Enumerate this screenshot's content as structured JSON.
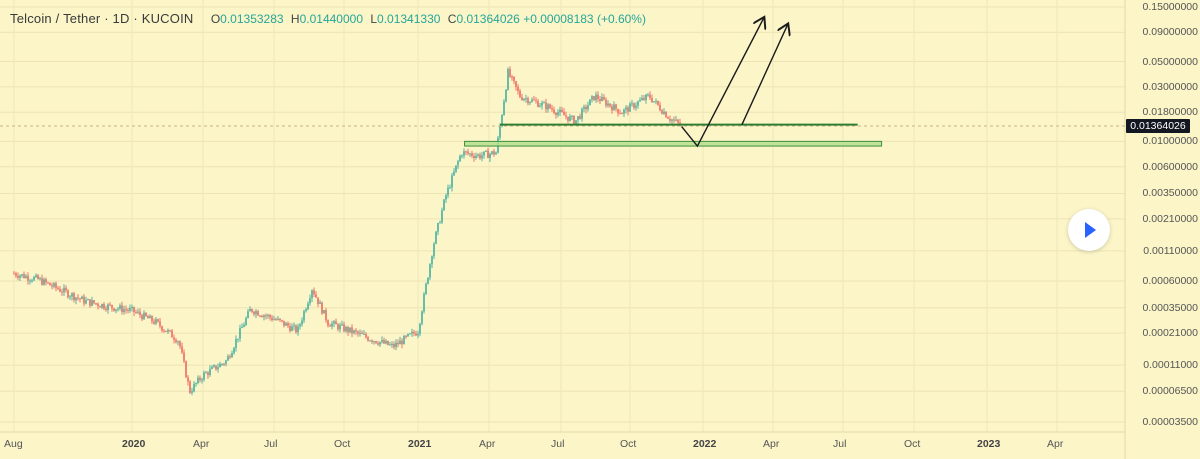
{
  "legend": {
    "symbol": "Telcoin / Tether · 1D · KUCOIN",
    "open_label": "O",
    "open": "0.01353283",
    "high_label": "H",
    "high": "0.01440000",
    "low_label": "L",
    "low": "0.01341330",
    "close_label": "C",
    "close": "0.01364026",
    "change": "+0.00008183 (+0.60%)"
  },
  "last_price_tag": "0.01364026",
  "colors": {
    "background": "#fbf5c8",
    "up": "#26a69a",
    "down": "#ef5350",
    "trendline": "#2e7d32",
    "zone_fill": "#b5df8e",
    "zone_stroke": "#3f8f3f",
    "arrows": "#1a1a1a",
    "price_line": "#c9b48a"
  },
  "chart_data": {
    "type": "candlestick",
    "title": "Telcoin / Tether",
    "interval": "1D",
    "exchange": "KUCOIN",
    "y_scale": "log",
    "y_ticks": [
      "0.15000000",
      "0.09000000",
      "0.05000000",
      "0.03000000",
      "0.01800000",
      "0.01000000",
      "0.00600000",
      "0.00350000",
      "0.00210000",
      "0.00110000",
      "0.00060000",
      "0.00035000",
      "0.00021000",
      "0.00011000",
      "0.00006500",
      "0.00003500"
    ],
    "x_ticks": [
      {
        "label": "Aug",
        "year": false
      },
      {
        "label": "2020",
        "year": true
      },
      {
        "label": "Apr",
        "year": false
      },
      {
        "label": "Jul",
        "year": false
      },
      {
        "label": "Oct",
        "year": false
      },
      {
        "label": "2021",
        "year": true
      },
      {
        "label": "Apr",
        "year": false
      },
      {
        "label": "Jul",
        "year": false
      },
      {
        "label": "Oct",
        "year": false
      },
      {
        "label": "2022",
        "year": true
      },
      {
        "label": "Apr",
        "year": false
      },
      {
        "label": "Jul",
        "year": false
      },
      {
        "label": "Oct",
        "year": false
      },
      {
        "label": "2023",
        "year": true
      },
      {
        "label": "Apr",
        "year": false
      }
    ],
    "price_path": [
      [
        "2019-08-01",
        0.0007
      ],
      [
        "2019-09-01",
        0.00062
      ],
      [
        "2019-10-01",
        0.0005
      ],
      [
        "2019-11-01",
        0.0004
      ],
      [
        "2019-12-01",
        0.00036
      ],
      [
        "2020-01-01",
        0.00033
      ],
      [
        "2020-02-01",
        0.00026
      ],
      [
        "2020-03-01",
        0.00018
      ],
      [
        "2020-03-15",
        6.5e-05
      ],
      [
        "2020-04-01",
        9e-05
      ],
      [
        "2020-05-01",
        0.00012
      ],
      [
        "2020-06-01",
        0.00034
      ],
      [
        "2020-07-01",
        0.00028
      ],
      [
        "2020-08-01",
        0.00022
      ],
      [
        "2020-08-20",
        0.00052
      ],
      [
        "2020-09-10",
        0.00026
      ],
      [
        "2020-10-01",
        0.00023
      ],
      [
        "2020-11-01",
        0.00019
      ],
      [
        "2020-12-01",
        0.00016
      ],
      [
        "2021-01-01",
        0.00022
      ],
      [
        "2021-01-20",
        0.0012
      ],
      [
        "2021-02-05",
        0.0033
      ],
      [
        "2021-02-25",
        0.008
      ],
      [
        "2021-03-20",
        0.0075
      ],
      [
        "2021-04-10",
        0.008
      ],
      [
        "2021-04-25",
        0.04
      ],
      [
        "2021-05-10",
        0.025
      ],
      [
        "2021-06-15",
        0.02
      ],
      [
        "2021-07-20",
        0.015
      ],
      [
        "2021-08-15",
        0.025
      ],
      [
        "2021-09-20",
        0.018
      ],
      [
        "2021-10-25",
        0.025
      ],
      [
        "2021-11-20",
        0.016
      ],
      [
        "2021-12-05",
        0.01364
      ]
    ],
    "annotations": {
      "horizontal_line": {
        "start": "2021-04-15",
        "end": "2022-07-20",
        "price": 0.014
      },
      "support_zone": {
        "start": "2021-03-01",
        "end": "2022-08-20",
        "low": 0.0091,
        "high": 0.01
      },
      "projections": [
        {
          "points": [
            [
              "2021-12-05",
              0.0135
            ],
            [
              "2021-12-25",
              0.0091
            ],
            [
              "2022-03-20",
              0.12
            ]
          ]
        },
        {
          "points": [
            [
              "2022-02-20",
              0.014
            ],
            [
              "2022-04-20",
              0.105
            ]
          ]
        }
      ]
    }
  }
}
